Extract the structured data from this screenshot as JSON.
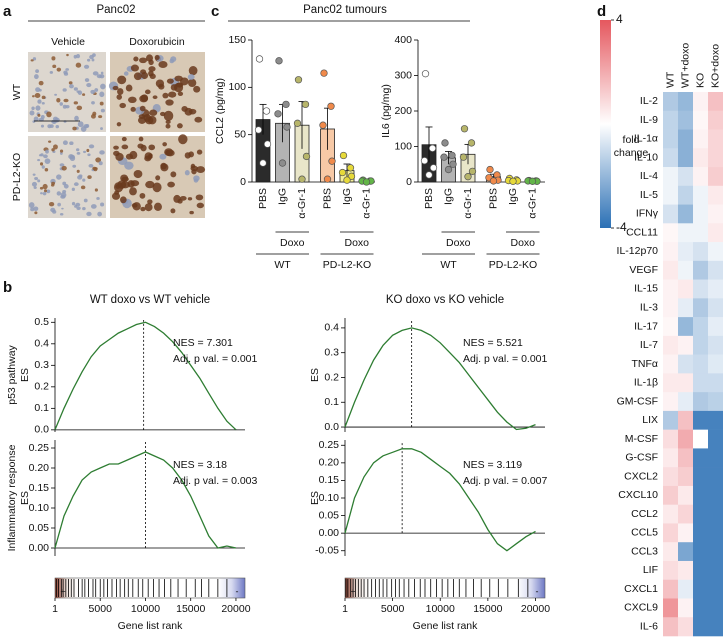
{
  "panel_labels": [
    "a",
    "b",
    "c",
    "d"
  ],
  "panel_a": {
    "title": "Panc02",
    "columns": [
      "Vehicle",
      "Doxorubicin"
    ],
    "rows": [
      "WT",
      "PD-L2-KO"
    ]
  },
  "panel_c": {
    "title": "Panc02 tumours"
  },
  "chart_data": [
    {
      "type": "bar",
      "ylabel": "CCL2 (pg/mg)",
      "ylim": [
        0,
        150
      ],
      "yticks": [
        0,
        50,
        100,
        150
      ],
      "groups": [
        {
          "label": "WT",
          "subgroups": [
            {
              "label": null,
              "bars": [
                {
                  "category": "PBS",
                  "value": 66,
                  "error": 16,
                  "color": "#2b2b2b",
                  "point_color": "#ffffff",
                  "points": [
                    130,
                    75,
                    55,
                    40,
                    20
                  ]
                }
              ]
            },
            {
              "label": "Doxo",
              "bars": [
                {
                  "category": "IgG",
                  "value": 62,
                  "error": 20,
                  "color": "#b3b3b3",
                  "point_color": "#8c8c8c",
                  "points": [
                    128,
                    82,
                    72,
                    58,
                    20
                  ]
                },
                {
                  "category": "α-Gr-1",
                  "value": 60,
                  "error": 25,
                  "color": "#e9e6c9",
                  "point_color": "#b7b56a",
                  "points": [
                    108,
                    82,
                    62,
                    27,
                    3
                  ]
                }
              ]
            }
          ]
        },
        {
          "label": "PD-L2-KO",
          "subgroups": [
            {
              "label": null,
              "bars": [
                {
                  "category": "PBS",
                  "value": 56,
                  "error": 22,
                  "color": "#f7c9a6",
                  "point_color": "#f08a4b",
                  "points": [
                    115,
                    80,
                    60,
                    22,
                    3
                  ]
                }
              ]
            },
            {
              "label": "Doxo",
              "bars": [
                {
                  "category": "IgG",
                  "value": 12,
                  "error": 7,
                  "color": "#f4ef9b",
                  "point_color": "#e6d93a",
                  "points": [
                    28,
                    15,
                    10,
                    6,
                    2
                  ]
                },
                {
                  "category": "α-Gr-1",
                  "value": 1,
                  "error": 0.5,
                  "color": "#c9e7b8",
                  "point_color": "#63b548",
                  "points": [
                    2,
                    1,
                    1,
                    1,
                    0
                  ]
                }
              ]
            }
          ]
        }
      ]
    },
    {
      "type": "bar",
      "ylabel": "IL6 (pg/mg)",
      "ylim": [
        0,
        400
      ],
      "yticks": [
        0,
        100,
        200,
        300,
        400
      ],
      "groups": [
        {
          "label": "WT",
          "subgroups": [
            {
              "label": null,
              "bars": [
                {
                  "category": "PBS",
                  "value": 105,
                  "error": 50,
                  "color": "#2b2b2b",
                  "point_color": "#ffffff",
                  "points": [
                    305,
                    95,
                    60,
                    40,
                    20
                  ]
                }
              ]
            },
            {
              "label": "Doxo",
              "bars": [
                {
                  "category": "IgG",
                  "value": 68,
                  "error": 18,
                  "color": "#b3b3b3",
                  "point_color": "#8c8c8c",
                  "points": [
                    110,
                    75,
                    70,
                    50,
                    35
                  ]
                },
                {
                  "category": "α-Gr-1",
                  "value": 78,
                  "error": 28,
                  "color": "#e9e6c9",
                  "point_color": "#b7b56a",
                  "points": [
                    150,
                    110,
                    70,
                    30,
                    15
                  ]
                }
              ]
            }
          ]
        },
        {
          "label": "PD-L2-KO",
          "subgroups": [
            {
              "label": null,
              "bars": [
                {
                  "category": "PBS",
                  "value": 15,
                  "error": 7,
                  "color": "#f7c9a6",
                  "point_color": "#f08a4b",
                  "points": [
                    35,
                    20,
                    12,
                    5,
                    3
                  ]
                }
              ]
            },
            {
              "label": "Doxo",
              "bars": [
                {
                  "category": "IgG",
                  "value": 5,
                  "error": 2,
                  "color": "#f4ef9b",
                  "point_color": "#e6d93a",
                  "points": [
                    10,
                    6,
                    4,
                    3,
                    2
                  ]
                },
                {
                  "category": "α-Gr-1",
                  "value": 3,
                  "error": 1,
                  "color": "#c9e7b8",
                  "point_color": "#63b548",
                  "points": [
                    4,
                    3,
                    3,
                    2,
                    2
                  ]
                }
              ]
            }
          ]
        }
      ]
    },
    {
      "type": "line",
      "title": "WT doxo vs WT vehicle",
      "row_label": "p53 pathway",
      "ylabel": "ES",
      "annotations": [
        "NES = 7.301",
        "Adj. p val. = 0.001"
      ],
      "x": [
        1,
        1000,
        2000,
        3000,
        4000,
        5000,
        6000,
        7000,
        8000,
        9000,
        10000,
        11000,
        12000,
        13000,
        14000,
        15000,
        16000,
        17000,
        18000,
        19000,
        20000
      ],
      "values": [
        0,
        0.1,
        0.19,
        0.27,
        0.34,
        0.39,
        0.42,
        0.45,
        0.47,
        0.49,
        0.5,
        0.48,
        0.45,
        0.41,
        0.36,
        0.3,
        0.24,
        0.17,
        0.1,
        0.04,
        0
      ],
      "color": "#2e7d32",
      "xlim": [
        1,
        21000
      ],
      "ylim": [
        -0.01,
        0.52
      ],
      "yticks": [
        {
          "value": 0,
          "label": "0.0"
        },
        0.1,
        0.2,
        0.3,
        0.4,
        0.5
      ],
      "leading_edge": 9800
    },
    {
      "type": "line",
      "title": "KO doxo vs KO vehicle",
      "ylabel": "ES",
      "annotations": [
        "NES = 5.521",
        "Adj. p val. = 0.001"
      ],
      "x": [
        1,
        1000,
        2000,
        3000,
        4000,
        5000,
        6000,
        7000,
        8000,
        9000,
        10000,
        11000,
        12000,
        13000,
        14000,
        15000,
        16000,
        17000,
        18000,
        19000,
        20000
      ],
      "values": [
        0,
        0.1,
        0.19,
        0.27,
        0.33,
        0.37,
        0.39,
        0.4,
        0.39,
        0.37,
        0.34,
        0.3,
        0.26,
        0.21,
        0.16,
        0.11,
        0.06,
        0.02,
        -0.01,
        -0.005,
        0.01
      ],
      "color": "#2e7d32",
      "xlim": [
        1,
        21000
      ],
      "ylim": [
        -0.02,
        0.44
      ],
      "yticks": [
        {
          "value": 0,
          "label": "0.0"
        },
        0.1,
        0.2,
        0.3,
        0.4
      ],
      "leading_edge": 7000
    },
    {
      "type": "line",
      "row_label": "Inflammatory response",
      "ylabel": "ES",
      "annotations": [
        "NES = 3.18",
        "Adj. p val. = 0.003"
      ],
      "x": [
        1,
        1000,
        2000,
        3000,
        4000,
        5000,
        6000,
        7000,
        8000,
        9000,
        10000,
        11000,
        12000,
        13000,
        14000,
        15000,
        16000,
        17000,
        18000,
        19000,
        20000
      ],
      "values": [
        0,
        0.08,
        0.13,
        0.17,
        0.19,
        0.2,
        0.21,
        0.21,
        0.22,
        0.23,
        0.24,
        0.23,
        0.22,
        0.2,
        0.17,
        0.13,
        0.08,
        0.03,
        0,
        0.005,
        0
      ],
      "color": "#2e7d32",
      "xlim": [
        1,
        21000
      ],
      "ylim": [
        -0.02,
        0.27
      ],
      "yticks": [
        {
          "value": 0,
          "label": "0.00"
        },
        0.05,
        {
          "value": 0.1,
          "label": "0.10"
        },
        0.15,
        {
          "value": 0.2,
          "label": "0.20"
        },
        0.25
      ],
      "leading_edge": 10000,
      "barcode": {
        "hits": [
          150,
          400,
          700,
          900,
          1200,
          1500,
          1800,
          2100,
          2600,
          3000,
          3300,
          3700,
          4200,
          4500,
          5000,
          5400,
          5800,
          6300,
          6800,
          7200,
          7700,
          8100,
          8600,
          9200,
          9700,
          10300,
          10900,
          11500,
          12100,
          12800,
          13600,
          14500,
          15500,
          16200,
          17000,
          18000,
          19000
        ],
        "xticks": [
          1,
          5000,
          10000,
          15000,
          20000
        ],
        "xlabel": "Gene list rank",
        "ends": [
          "+",
          "-"
        ]
      }
    },
    {
      "type": "line",
      "ylabel": "ES",
      "annotations": [
        "NES = 3.119",
        "Adj. p val. = 0.007"
      ],
      "x": [
        1,
        1000,
        2000,
        3000,
        4000,
        5000,
        6000,
        7000,
        8000,
        9000,
        10000,
        11000,
        12000,
        13000,
        14000,
        15000,
        16000,
        17000,
        18000,
        19000,
        20000
      ],
      "values": [
        0,
        0.1,
        0.16,
        0.2,
        0.22,
        0.23,
        0.24,
        0.24,
        0.23,
        0.21,
        0.19,
        0.17,
        0.14,
        0.1,
        0.06,
        0.01,
        -0.03,
        -0.05,
        -0.03,
        -0.01,
        0.005
      ],
      "color": "#2e7d32",
      "xlim": [
        1,
        21000
      ],
      "ylim": [
        -0.065,
        0.265
      ],
      "yticks": [
        -0.05,
        {
          "value": 0,
          "label": "0.00"
        },
        0.05,
        {
          "value": 0.1,
          "label": "0.10"
        },
        0.15,
        {
          "value": 0.2,
          "label": "0.20"
        },
        0.25
      ],
      "leading_edge": 6000,
      "barcode": {
        "hits": [
          100,
          300,
          600,
          850,
          1100,
          1400,
          1700,
          2000,
          2400,
          2800,
          3200,
          3600,
          4000,
          4400,
          4900,
          5300,
          5700,
          6200,
          6700,
          7300,
          7900,
          8400,
          9000,
          9600,
          10200,
          10800,
          11400,
          12000,
          12700,
          13500,
          14300,
          15200,
          16100,
          17100,
          18200,
          19200
        ],
        "xticks": [
          1,
          5000,
          10000,
          15000,
          20000
        ],
        "xlabel": "Gene list rank",
        "ends": [
          "+",
          "-"
        ]
      }
    },
    {
      "type": "heatmap",
      "columns": [
        "WT",
        "WT+doxo",
        "KO",
        "KO+doxo"
      ],
      "rows": [
        "IL-2",
        "IL-9",
        "IL-1α",
        "IL-10",
        "IL-4",
        "IL-5",
        "IFNγ",
        "CCL11",
        "IL-12p70",
        "VEGF",
        "IL-15",
        "IL-3",
        "IL-17",
        "IL-7",
        "TNFα",
        "IL-1β",
        "GM-CSF",
        "LIX",
        "M-CSF",
        "G-CSF",
        "CXCL2",
        "CXCL10",
        "CCL2",
        "CCL5",
        "CCL3",
        "LIF",
        "CXCL1",
        "CXCL9",
        "IL-6"
      ],
      "values": [
        [
          -1.5,
          -2,
          0.3,
          1.5
        ],
        [
          -1.2,
          -1.8,
          0.2,
          1.2
        ],
        [
          -1.2,
          -2.2,
          0.3,
          1
        ],
        [
          -1,
          -2.2,
          0.5,
          1
        ],
        [
          -0.3,
          -0.8,
          0.3,
          1.2
        ],
        [
          -0.3,
          -1.2,
          -0.3,
          0.5
        ],
        [
          -0.8,
          -2,
          -0.3,
          0.3
        ],
        [
          0.2,
          -0.3,
          -0.3,
          0.5
        ],
        [
          0.3,
          -0.5,
          -0.8,
          -0.3
        ],
        [
          0.5,
          -0.3,
          -1.5,
          -0.8
        ],
        [
          0.3,
          0.5,
          -0.8,
          -0.5
        ],
        [
          0.3,
          -0.5,
          -1.5,
          -0.8
        ],
        [
          0.2,
          -2,
          -1.2,
          -0.5
        ],
        [
          0.5,
          0.3,
          -1.2,
          -0.8
        ],
        [
          0.3,
          -0.8,
          -1,
          -0.6
        ],
        [
          0.5,
          0.5,
          -1,
          -1
        ],
        [
          0.3,
          -0.5,
          -1.5,
          -1.3
        ],
        [
          -1.5,
          1.5,
          -3.5,
          -3.5
        ],
        [
          0.8,
          2,
          0,
          -3.5
        ],
        [
          0.5,
          1.5,
          -3.5,
          -3.5
        ],
        [
          0.8,
          1.2,
          -3.5,
          -3.5
        ],
        [
          1.2,
          0.5,
          -3.5,
          -3.5
        ],
        [
          0.5,
          1,
          -3.5,
          -3.5
        ],
        [
          1,
          0.3,
          -3.5,
          -3.5
        ],
        [
          0.5,
          -2.5,
          -3.5,
          -3.5
        ],
        [
          0.8,
          0.5,
          -3.5,
          -3.5
        ],
        [
          1.5,
          -0.5,
          -3.5,
          -3.5
        ],
        [
          2.5,
          0.3,
          -3.5,
          -3.5
        ],
        [
          1.5,
          0.8,
          -3.5,
          -3.5
        ]
      ],
      "clim": [
        -4,
        4
      ],
      "cticks": [
        4,
        -4
      ],
      "colorbar_label": [
        "fold",
        "change"
      ],
      "colors": [
        "#2b70b5",
        "#ffffff",
        "#e5575e"
      ]
    }
  ]
}
